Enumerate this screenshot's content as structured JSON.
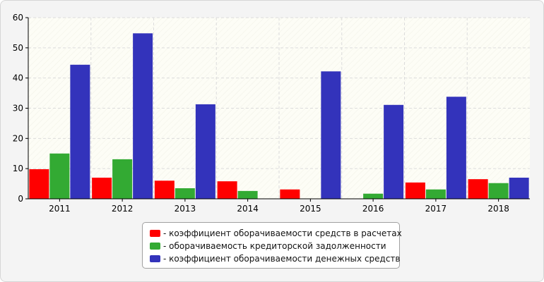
{
  "chart_data": {
    "type": "bar",
    "categories": [
      "2011",
      "2012",
      "2013",
      "2014",
      "2015",
      "2016",
      "2017",
      "2018"
    ],
    "series": [
      {
        "name": "- коэффициент оборачиваемости средств в расчетах",
        "color": "#ff0000",
        "values": [
          9.8,
          7.0,
          6.0,
          5.8,
          3.1,
          0.1,
          5.4,
          6.5
        ]
      },
      {
        "name": "- оборачиваемость кредиторской задолженности",
        "color": "#33aa33",
        "values": [
          15.0,
          13.1,
          3.5,
          2.6,
          0.0,
          1.7,
          3.1,
          5.2
        ]
      },
      {
        "name": "- коэффициент оборачиваемости денежных средств",
        "color": "#3333bb",
        "values": [
          44.4,
          54.8,
          31.3,
          0.0,
          42.2,
          31.1,
          33.8,
          7.0
        ]
      }
    ],
    "ylim": [
      0,
      60
    ],
    "yticks": [
      0,
      10,
      20,
      30,
      40,
      50,
      60
    ],
    "grid": true,
    "legend_position": "bottom-center"
  }
}
